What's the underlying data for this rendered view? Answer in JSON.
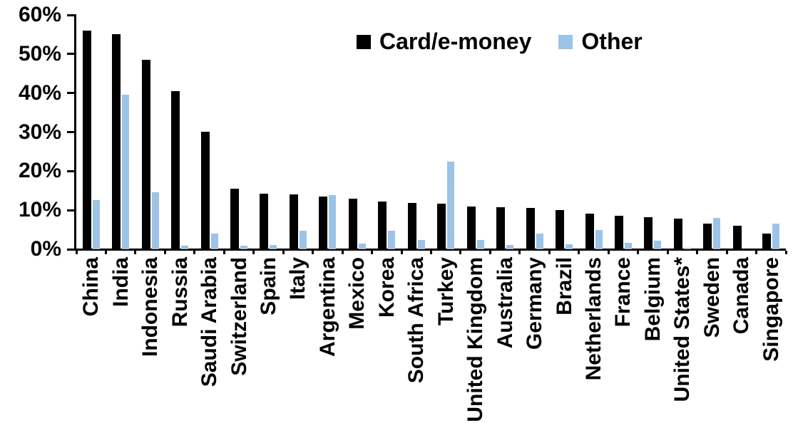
{
  "chart_data": {
    "type": "bar",
    "title": "",
    "categories": [
      "China",
      "India",
      "Indonesia",
      "Russia",
      "Saudi Arabia",
      "Switzerland",
      "Spain",
      "Italy",
      "Argentina",
      "Mexico",
      "Korea",
      "South Africa",
      "Turkey",
      "United Kingdom",
      "Australia",
      "Germany",
      "Brazil",
      "Netherlands",
      "France",
      "Belgium",
      "United States*",
      "Sweden",
      "Canada",
      "Singapore"
    ],
    "series": [
      {
        "name": "Card/e-money",
        "color": "#000000",
        "values": [
          56,
          55,
          48.5,
          40.5,
          30,
          15.5,
          14.2,
          14,
          13.5,
          13,
          12.3,
          11.8,
          11.6,
          11,
          10.8,
          10.6,
          10,
          9.2,
          8.6,
          8.2,
          7.9,
          6.5,
          6,
          4
        ]
      },
      {
        "name": "Other",
        "color": "#9DC3E6",
        "values": [
          12.5,
          39.5,
          14.5,
          1,
          4,
          0.9,
          1.1,
          4.7,
          13.9,
          1.4,
          4.8,
          2.4,
          22.5,
          2.4,
          1.1,
          4,
          1.2,
          4.9,
          1.6,
          2.1,
          0.3,
          8.1,
          0,
          6.6
        ]
      }
    ],
    "ylim": [
      0,
      60
    ],
    "y_ticks": [
      0,
      10,
      20,
      30,
      40,
      50,
      60
    ],
    "y_tick_suffix": "%",
    "xlabel": "",
    "ylabel": "",
    "grid": false,
    "legend_position": "top-center",
    "axis_color": "#000000"
  }
}
